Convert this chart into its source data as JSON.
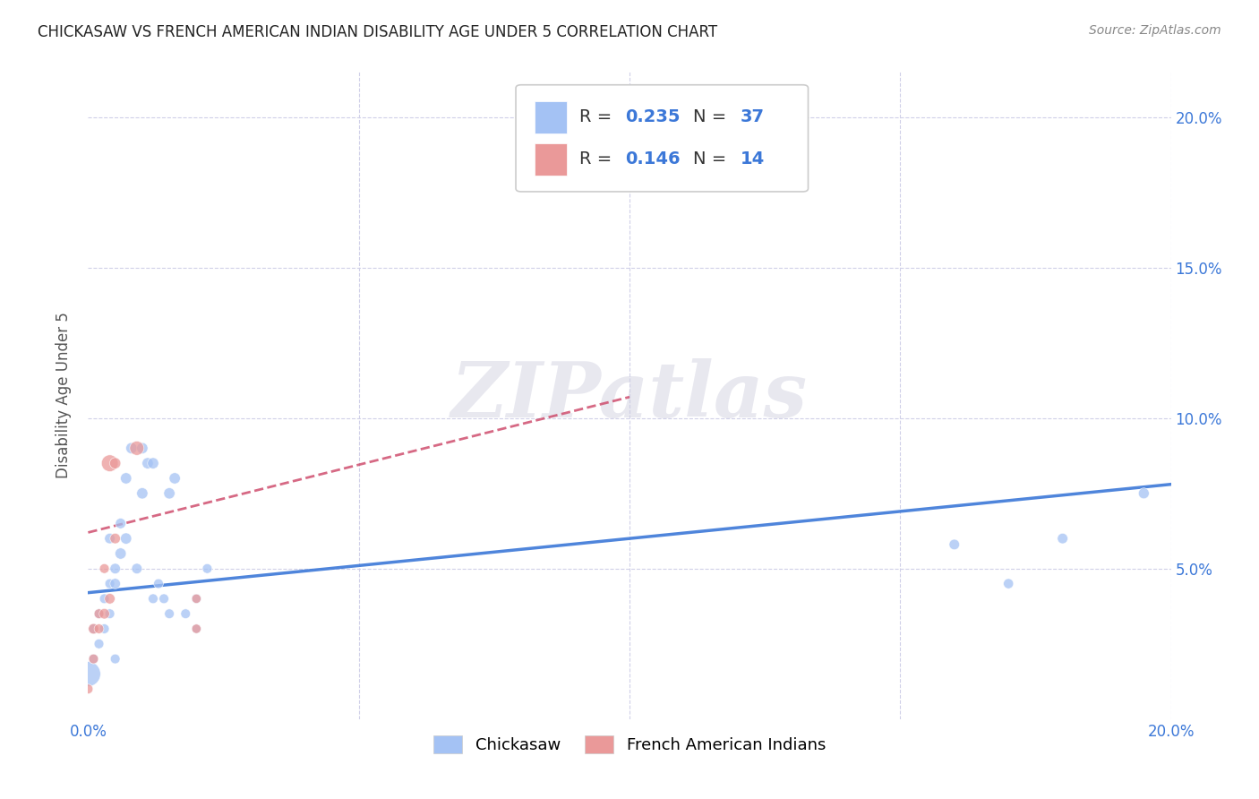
{
  "title": "CHICKASAW VS FRENCH AMERICAN INDIAN DISABILITY AGE UNDER 5 CORRELATION CHART",
  "source": "Source: ZipAtlas.com",
  "ylabel": "Disability Age Under 5",
  "watermark": "ZIPatlas",
  "chickasaw_x": [
    0.0,
    0.001,
    0.001,
    0.002,
    0.002,
    0.003,
    0.003,
    0.004,
    0.004,
    0.004,
    0.005,
    0.005,
    0.005,
    0.006,
    0.006,
    0.007,
    0.007,
    0.008,
    0.009,
    0.01,
    0.01,
    0.011,
    0.012,
    0.012,
    0.013,
    0.014,
    0.015,
    0.015,
    0.016,
    0.018,
    0.02,
    0.02,
    0.022,
    0.16,
    0.17,
    0.18,
    0.195
  ],
  "chickasaw_y": [
    0.015,
    0.02,
    0.03,
    0.025,
    0.035,
    0.03,
    0.04,
    0.035,
    0.045,
    0.06,
    0.045,
    0.02,
    0.05,
    0.065,
    0.055,
    0.06,
    0.08,
    0.09,
    0.05,
    0.075,
    0.09,
    0.085,
    0.085,
    0.04,
    0.045,
    0.04,
    0.075,
    0.035,
    0.08,
    0.035,
    0.04,
    0.03,
    0.05,
    0.058,
    0.045,
    0.06,
    0.075
  ],
  "chickasaw_sizes": [
    400,
    60,
    60,
    60,
    60,
    60,
    60,
    60,
    60,
    70,
    70,
    60,
    70,
    70,
    80,
    80,
    80,
    80,
    70,
    80,
    80,
    80,
    80,
    60,
    60,
    60,
    80,
    60,
    80,
    60,
    60,
    55,
    60,
    70,
    65,
    70,
    75
  ],
  "french_x": [
    0.0,
    0.001,
    0.001,
    0.002,
    0.002,
    0.003,
    0.003,
    0.004,
    0.004,
    0.005,
    0.005,
    0.009,
    0.02,
    0.02
  ],
  "french_y": [
    0.01,
    0.02,
    0.03,
    0.03,
    0.035,
    0.035,
    0.05,
    0.04,
    0.085,
    0.06,
    0.085,
    0.09,
    0.03,
    0.04
  ],
  "french_sizes": [
    60,
    60,
    70,
    60,
    60,
    70,
    60,
    70,
    180,
    70,
    80,
    130,
    55,
    55
  ],
  "chickasaw_color": "#a4c2f4",
  "french_color": "#ea9999",
  "chickasaw_line_color": "#3c78d8",
  "french_line_color": "#cc4466",
  "R_chickasaw": 0.235,
  "N_chickasaw": 37,
  "R_french": 0.146,
  "N_french": 14,
  "xlim": [
    0.0,
    0.2
  ],
  "ylim": [
    0.0,
    0.215
  ],
  "ytick_vals": [
    0.0,
    0.05,
    0.1,
    0.15,
    0.2
  ],
  "ytick_labels": [
    "",
    "5.0%",
    "10.0%",
    "15.0%",
    "20.0%"
  ],
  "legend_labels": [
    "Chickasaw",
    "French American Indians"
  ],
  "background_color": "#ffffff",
  "grid_color": "#d0d0e8",
  "text_color_blue": "#3c78d8",
  "title_color": "#222222",
  "chickasaw_trend_intercept": 0.042,
  "chickasaw_trend_slope": 0.18,
  "french_trend_intercept": 0.062,
  "french_trend_slope": 0.45
}
